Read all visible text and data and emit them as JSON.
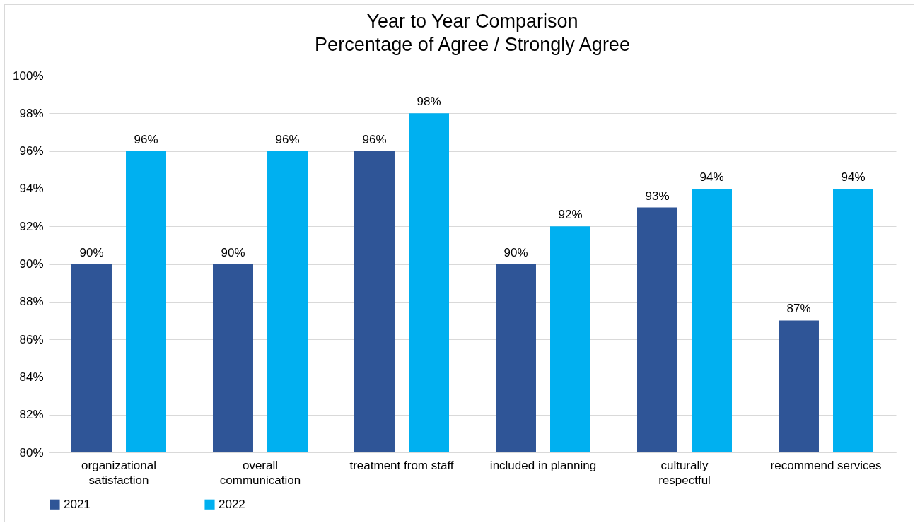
{
  "chart_data": {
    "type": "bar",
    "title": "Year to Year Comparison",
    "subtitle": "Percentage of Agree / Strongly Agree",
    "categories": [
      "organizational satisfaction",
      "overall communication",
      "treatment from staff",
      "included in planning",
      "culturally respectful",
      "recommend services"
    ],
    "series": [
      {
        "name": "2021",
        "color": "#2f5597",
        "values": [
          90,
          90,
          96,
          90,
          93,
          87
        ],
        "value_labels": [
          "90%",
          "90%",
          "96%",
          "90%",
          "93%",
          "87%"
        ]
      },
      {
        "name": "2022",
        "color": "#00b0f0",
        "values": [
          96,
          96,
          98,
          92,
          94,
          94
        ],
        "value_labels": [
          "96%",
          "96%",
          "98%",
          "92%",
          "94%",
          "94%"
        ]
      }
    ],
    "ylim": [
      80,
      100
    ],
    "yticks": [
      {
        "value": 80,
        "label": "80%"
      },
      {
        "value": 82,
        "label": "82%"
      },
      {
        "value": 84,
        "label": "84%"
      },
      {
        "value": 86,
        "label": "86%"
      },
      {
        "value": 88,
        "label": "88%"
      },
      {
        "value": 90,
        "label": "90%"
      },
      {
        "value": 92,
        "label": "92%"
      },
      {
        "value": 94,
        "label": "94%"
      },
      {
        "value": 96,
        "label": "96%"
      },
      {
        "value": 98,
        "label": "98%"
      },
      {
        "value": 100,
        "label": "100%"
      }
    ],
    "grid": "y",
    "legend": "bottom"
  }
}
